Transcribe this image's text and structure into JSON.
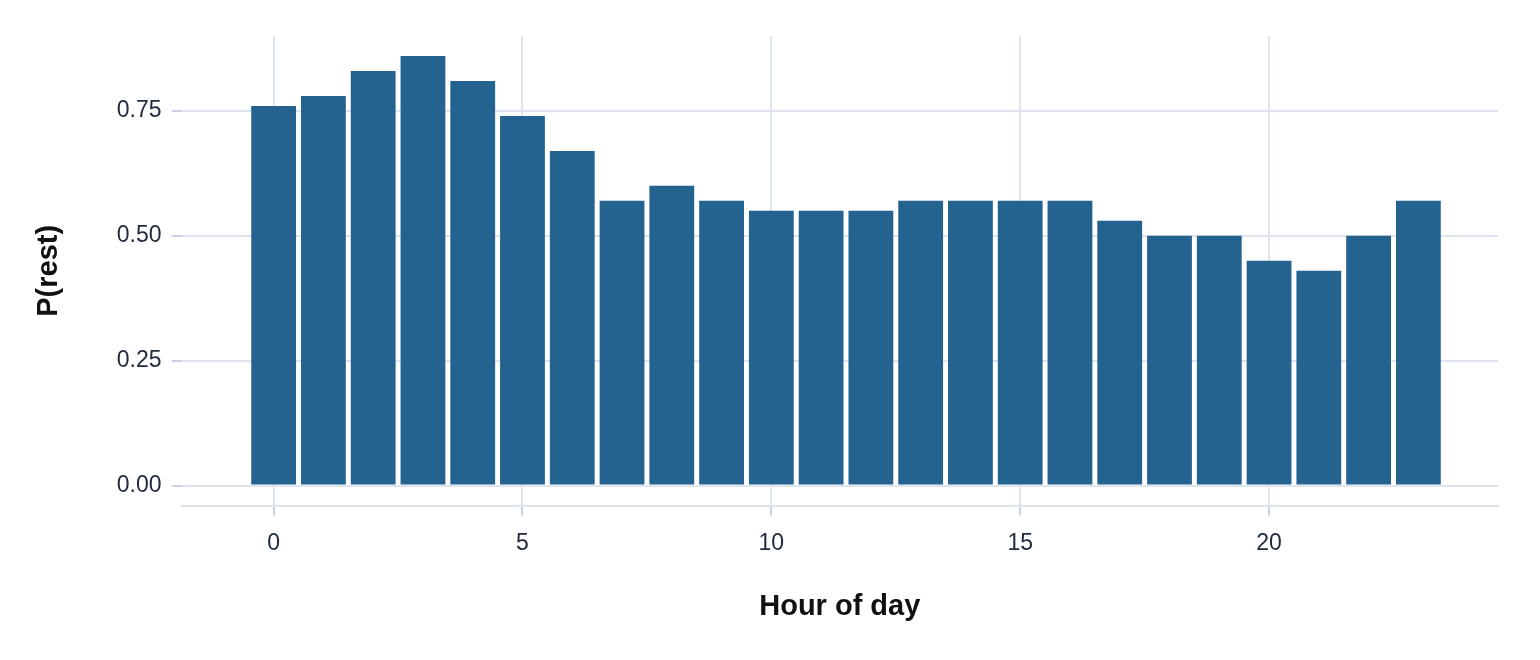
{
  "chart_data": {
    "type": "bar",
    "xlabel": "Hour of day",
    "ylabel": "P(rest)",
    "x": [
      0,
      1,
      2,
      3,
      4,
      5,
      6,
      7,
      8,
      9,
      10,
      11,
      12,
      13,
      14,
      15,
      16,
      17,
      18,
      19,
      20,
      21,
      22,
      23
    ],
    "values": [
      0.76,
      0.78,
      0.83,
      0.86,
      0.81,
      0.74,
      0.67,
      0.57,
      0.6,
      0.57,
      0.55,
      0.55,
      0.55,
      0.57,
      0.57,
      0.57,
      0.57,
      0.53,
      0.5,
      0.5,
      0.45,
      0.43,
      0.5,
      0.57
    ],
    "color": "#246290",
    "xlim": [
      -1.85,
      24.6
    ],
    "xticks": [
      0,
      5,
      10,
      15,
      20
    ],
    "ylim": [
      -0.04,
      0.9
    ],
    "yticks": [
      {
        "value": 0,
        "label": "0.00"
      },
      {
        "value": 0.25,
        "label": "0.25"
      },
      {
        "value": 0.5,
        "label": "0.50"
      },
      {
        "value": 0.75,
        "label": "0.75"
      }
    ],
    "grid": true,
    "legend": false
  }
}
